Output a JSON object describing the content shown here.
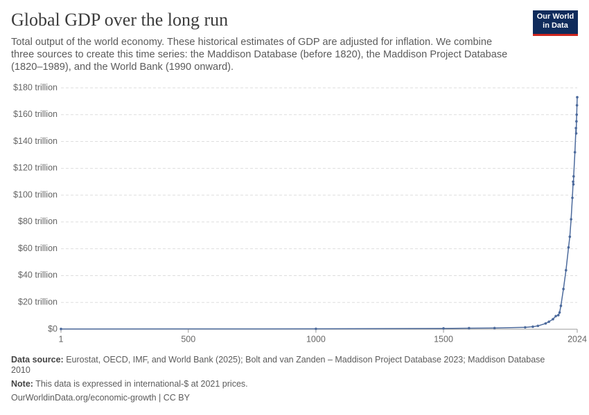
{
  "chart_data": {
    "type": "line",
    "title": "Global GDP over the long run",
    "subtitle": "Total output of the world economy. These historical estimates of GDP are adjusted for inflation. We combine three sources to create this time series: the Maddison Database (before 1820), the Maddison Project Database (1820–1989), and the World Bank (1990 onward).",
    "x": [
      1,
      1000,
      1500,
      1600,
      1700,
      1820,
      1850,
      1870,
      1900,
      1913,
      1929,
      1940,
      1950,
      1955,
      1960,
      1970,
      1980,
      1990,
      1995,
      2000,
      2005,
      2008,
      2009,
      2010,
      2015,
      2019,
      2020,
      2021,
      2022,
      2023,
      2024
    ],
    "values": [
      0.2,
      0.3,
      0.6,
      0.8,
      0.9,
      1.4,
      1.9,
      2.5,
      4.3,
      5.6,
      7.5,
      9.8,
      10.5,
      12.5,
      17.5,
      30,
      44,
      61,
      69,
      82,
      98,
      110,
      108,
      114,
      132,
      150,
      146,
      155,
      160,
      167,
      173
    ],
    "color": "#4c6a9c",
    "xlim": [
      1,
      2024
    ],
    "xticks": [
      1,
      500,
      1000,
      1500,
      2024
    ],
    "ylim": [
      0,
      180
    ],
    "yticks": [
      {
        "value": 0,
        "label": "$0"
      },
      {
        "value": 20,
        "label": "$20 trillion"
      },
      {
        "value": 40,
        "label": "$40 trillion"
      },
      {
        "value": 60,
        "label": "$60 trillion"
      },
      {
        "value": 80,
        "label": "$80 trillion"
      },
      {
        "value": 100,
        "label": "$100 trillion"
      },
      {
        "value": 120,
        "label": "$120 trillion"
      },
      {
        "value": 140,
        "label": "$140 trillion"
      },
      {
        "value": 160,
        "label": "$160 trillion"
      },
      {
        "value": 180,
        "label": "$180 trillion"
      }
    ],
    "grid": true
  },
  "logo": [
    "Our World",
    "in Data"
  ],
  "source": {
    "label": "Data source:",
    "text": "Eurostat, OECD, IMF, and World Bank (2025); Bolt and van Zanden – Maddison Project Database 2023; Maddison Database 2010"
  },
  "note": {
    "label": "Note:",
    "text": "This data is expressed in international-$ at 2021 prices."
  },
  "url": "OurWorldinData.org/economic-growth | CC BY"
}
